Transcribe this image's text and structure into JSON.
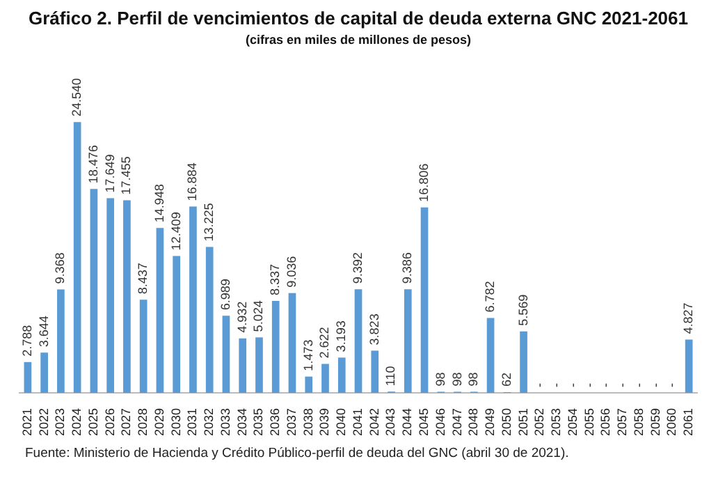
{
  "chart_data": {
    "type": "bar",
    "title": "Gráfico 2. Perfil de vencimientos de capital de deuda externa GNC 2021-2061",
    "subtitle": "(cifras en miles de millones de pesos)",
    "categories": [
      "2021",
      "2022",
      "2023",
      "2024",
      "2025",
      "2026",
      "2027",
      "2028",
      "2029",
      "2030",
      "2031",
      "2032",
      "2033",
      "2034",
      "2035",
      "2036",
      "2037",
      "2038",
      "2039",
      "2040",
      "2041",
      "2042",
      "2043",
      "2044",
      "2045",
      "2046",
      "2047",
      "2048",
      "2049",
      "2050",
      "2051",
      "2052",
      "2053",
      "2054",
      "2055",
      "2056",
      "2057",
      "2058",
      "2059",
      "2060",
      "2061"
    ],
    "values": [
      2788,
      3644,
      9368,
      24540,
      18476,
      17649,
      17455,
      8437,
      14948,
      12409,
      16884,
      13225,
      6989,
      4932,
      5024,
      8337,
      9036,
      1473,
      2622,
      3193,
      9392,
      3823,
      110,
      9386,
      16806,
      98,
      98,
      98,
      6782,
      62,
      5569,
      0,
      0,
      0,
      0,
      0,
      0,
      0,
      0,
      0,
      4827
    ],
    "value_labels": [
      "2.788",
      "3.644",
      "9.368",
      "24.540",
      "18.476",
      "17.649",
      "17.455",
      "8.437",
      "14.948",
      "12.409",
      "16.884",
      "13.225",
      "6.989",
      "4.932",
      "5.024",
      "8.337",
      "9.036",
      "1.473",
      "2.622",
      "3.193",
      "9.392",
      "3.823",
      "110",
      "9.386",
      "16.806",
      "98",
      "98",
      "98",
      "6.782",
      "62",
      "5.569",
      "-",
      "-",
      "-",
      "-",
      "-",
      "-",
      "-",
      "-",
      "-",
      "4.827"
    ],
    "color": "#5b9bd5",
    "grid": false,
    "legend": false,
    "annotations": [
      "Fuente: Ministerio de Hacienda y Crédito Público-perfil de deuda del GNC (abril 30 de 2021)."
    ]
  }
}
